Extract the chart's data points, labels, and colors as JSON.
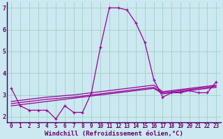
{
  "xlabel": "Windchill (Refroidissement éolien,°C)",
  "bg_color": "#cce8f0",
  "line_color": "#990099",
  "x": [
    0,
    1,
    2,
    3,
    4,
    5,
    6,
    7,
    8,
    9,
    10,
    11,
    12,
    13,
    14,
    15,
    16,
    17,
    18,
    19,
    20,
    21,
    22,
    23
  ],
  "y_main": [
    3.3,
    2.5,
    2.3,
    2.3,
    2.3,
    1.9,
    2.5,
    2.2,
    2.2,
    3.1,
    5.2,
    7.0,
    7.0,
    6.9,
    6.3,
    5.4,
    3.7,
    2.9,
    3.1,
    3.1,
    3.2,
    3.1,
    3.1,
    3.6
  ],
  "y_trend_a": [
    2.5,
    2.55,
    2.6,
    2.65,
    2.7,
    2.75,
    2.8,
    2.85,
    2.9,
    2.95,
    3.0,
    3.05,
    3.1,
    3.15,
    3.2,
    3.25,
    3.3,
    3.05,
    3.1,
    3.15,
    3.2,
    3.25,
    3.3,
    3.35
  ],
  "y_trend_b": [
    2.6,
    2.65,
    2.7,
    2.75,
    2.8,
    2.83,
    2.87,
    2.9,
    2.95,
    3.0,
    3.05,
    3.1,
    3.15,
    3.2,
    3.25,
    3.3,
    3.35,
    3.1,
    3.15,
    3.2,
    3.25,
    3.3,
    3.35,
    3.4
  ],
  "y_trend_c": [
    2.7,
    2.75,
    2.8,
    2.85,
    2.9,
    2.93,
    2.97,
    3.0,
    3.05,
    3.1,
    3.15,
    3.2,
    3.25,
    3.3,
    3.35,
    3.4,
    3.45,
    3.15,
    3.2,
    3.25,
    3.3,
    3.35,
    3.4,
    3.45
  ],
  "ylim": [
    1.75,
    7.25
  ],
  "xlim": [
    -0.5,
    23.5
  ],
  "yticks": [
    2,
    3,
    4,
    5,
    6,
    7
  ],
  "xticks": [
    0,
    1,
    2,
    3,
    4,
    5,
    6,
    7,
    8,
    9,
    10,
    11,
    12,
    13,
    14,
    15,
    16,
    17,
    18,
    19,
    20,
    21,
    22,
    23
  ],
  "grid_color": "#99ccbb",
  "xlabel_fontsize": 6.5,
  "tick_fontsize": 5.5,
  "lw": 0.9
}
